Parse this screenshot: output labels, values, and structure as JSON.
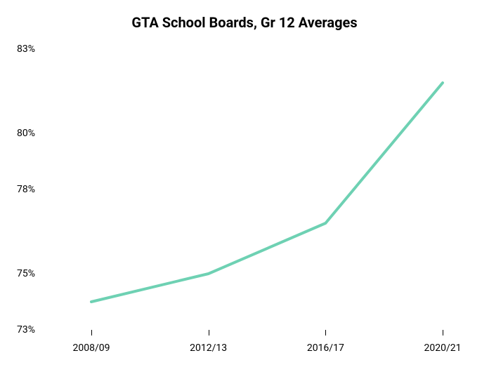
{
  "chart": {
    "type": "line",
    "title": "GTA School Boards, Gr 12 Averages",
    "title_fontsize": 20,
    "title_weight": "bold",
    "title_color": "#000000",
    "background_color": "#ffffff",
    "x_categories": [
      "2008/09",
      "2012/13",
      "2016/17",
      "2020/21"
    ],
    "y_values": [
      74.0,
      75.0,
      76.8,
      81.8
    ],
    "line_color": "#6ed1b3",
    "line_width": 4,
    "ylim": [
      73,
      83
    ],
    "y_ticks": [
      73,
      75,
      78,
      80,
      83
    ],
    "y_tick_labels": [
      "73%",
      "75%",
      "78%",
      "80%",
      "83%"
    ],
    "label_fontsize": 14,
    "label_color": "#000000",
    "x_tick_mark_color": "#000000"
  }
}
